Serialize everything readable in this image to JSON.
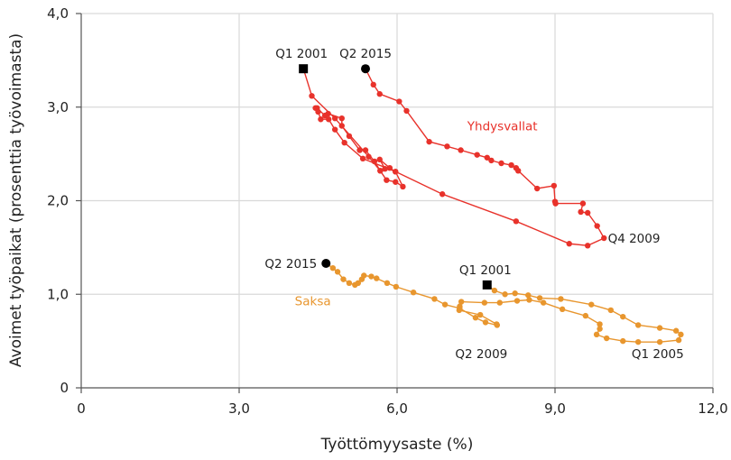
{
  "chart_data": {
    "type": "scatter",
    "title": "",
    "xlabel": "Työttömyysaste (%)",
    "ylabel": "Avoimet työpaikat (prosenttia työvoimasta)",
    "xlim": [
      0,
      12
    ],
    "ylim": [
      0,
      4
    ],
    "xticks": [
      0,
      3,
      6,
      9,
      12
    ],
    "xtick_labels": [
      "0",
      "3,0",
      "6,0",
      "9,0",
      "12,0"
    ],
    "yticks": [
      0,
      1,
      2,
      3,
      4
    ],
    "ytick_labels": [
      "0",
      "1,0",
      "2,0",
      "3,0",
      "4,0"
    ],
    "grid": true,
    "series": [
      {
        "name": "Yhdysvallat",
        "color": "#e8322b",
        "connected": true,
        "x": [
          4.22,
          4.38,
          4.82,
          5.46,
          5.68,
          5.77,
          5.67,
          5.86,
          5.97,
          6.11,
          5.97,
          5.8,
          5.68,
          5.57,
          5.4,
          5.29,
          5.29,
          5.09,
          4.95,
          4.95,
          4.69,
          4.63,
          4.48,
          4.45,
          4.5,
          4.55,
          4.7,
          4.82,
          5.0,
          5.35,
          5.97,
          6.86,
          8.26,
          9.27,
          9.62,
          9.93,
          9.8,
          9.62,
          9.49,
          9.53,
          9.01,
          9.0,
          8.98,
          8.66,
          8.3,
          8.26,
          8.17,
          7.98,
          7.79,
          7.71,
          7.52,
          7.21,
          6.95,
          6.61,
          6.18,
          6.04,
          5.67,
          5.55,
          5.4
        ],
        "y": [
          3.41,
          3.12,
          2.88,
          2.47,
          2.32,
          2.34,
          2.44,
          2.35,
          2.31,
          2.15,
          2.2,
          2.22,
          2.32,
          2.42,
          2.54,
          2.54,
          2.54,
          2.69,
          2.8,
          2.88,
          2.93,
          2.91,
          2.99,
          2.99,
          2.95,
          2.87,
          2.87,
          2.76,
          2.62,
          2.45,
          2.31,
          2.07,
          1.78,
          1.54,
          1.52,
          1.6,
          1.73,
          1.87,
          1.88,
          1.97,
          1.97,
          1.99,
          2.16,
          2.13,
          2.32,
          2.35,
          2.38,
          2.4,
          2.43,
          2.46,
          2.49,
          2.54,
          2.58,
          2.63,
          2.96,
          3.06,
          3.14,
          3.24,
          3.41
        ]
      },
      {
        "name": "Saksa",
        "color": "#e8962e",
        "connected": true,
        "x": [
          7.71,
          7.85,
          8.05,
          8.24,
          8.49,
          8.71,
          9.11,
          9.69,
          10.06,
          10.29,
          10.58,
          10.99,
          11.3,
          11.39,
          11.35,
          10.99,
          10.58,
          10.29,
          9.98,
          9.79,
          9.85,
          9.85,
          9.58,
          9.14,
          8.78,
          8.51,
          8.28,
          7.95,
          7.66,
          7.22,
          7.19,
          7.18,
          7.58,
          7.89,
          7.9,
          7.68,
          7.49,
          7.19,
          6.91,
          6.71,
          6.31,
          5.98,
          5.81,
          5.61,
          5.51,
          5.37,
          5.33,
          5.26,
          5.2,
          5.09,
          4.98,
          4.87,
          4.78,
          4.65
        ],
        "y": [
          1.1,
          1.04,
          1.0,
          1.01,
          0.99,
          0.96,
          0.95,
          0.89,
          0.83,
          0.76,
          0.67,
          0.64,
          0.61,
          0.57,
          0.51,
          0.49,
          0.49,
          0.5,
          0.53,
          0.57,
          0.63,
          0.68,
          0.77,
          0.84,
          0.91,
          0.94,
          0.93,
          0.91,
          0.91,
          0.92,
          0.87,
          0.83,
          0.78,
          0.68,
          0.67,
          0.7,
          0.75,
          0.85,
          0.89,
          0.95,
          1.02,
          1.08,
          1.12,
          1.17,
          1.19,
          1.2,
          1.16,
          1.12,
          1.1,
          1.12,
          1.16,
          1.24,
          1.28,
          1.33
        ]
      }
    ],
    "annotations": [
      {
        "text": "Q1 2001",
        "series": "Yhdysvallat",
        "x": 4.22,
        "y": 3.41,
        "marker": "square",
        "color": "#222222"
      },
      {
        "text": "Q2 2015",
        "series": "Yhdysvallat",
        "x": 5.4,
        "y": 3.41,
        "marker": "circle",
        "color": "#222222"
      },
      {
        "text": "Yhdysvallat",
        "x": 8.0,
        "y": 2.75,
        "color": "#e8322b"
      },
      {
        "text": "Q4 2009",
        "x": 10.5,
        "y": 1.55,
        "color": "#222222"
      },
      {
        "text": "Q2 2015",
        "series": "Saksa",
        "x": 4.65,
        "y": 1.33,
        "marker": "circle",
        "color": "#222222"
      },
      {
        "text": "Q1 2001",
        "series": "Saksa",
        "x": 7.71,
        "y": 1.1,
        "marker": "square",
        "color": "#222222"
      },
      {
        "text": "Saksa",
        "x": 4.4,
        "y": 0.88,
        "color": "#e8962e"
      },
      {
        "text": "Q2 2009",
        "x": 7.6,
        "y": 0.32,
        "color": "#222222"
      },
      {
        "text": "Q1 2005",
        "x": 10.95,
        "y": 0.32,
        "color": "#222222"
      }
    ]
  }
}
